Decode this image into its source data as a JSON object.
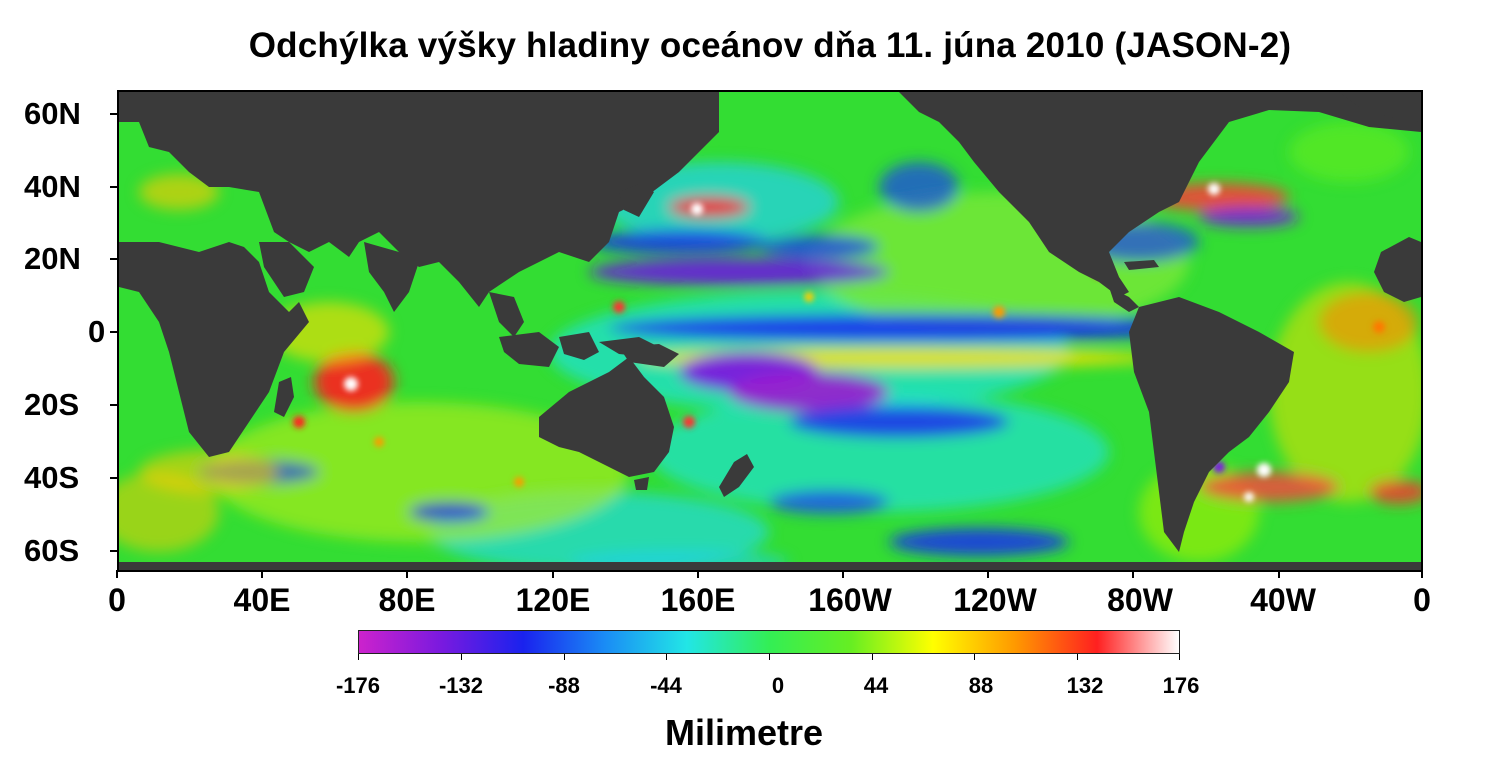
{
  "title": "Odchýlka výšky hladiny oceánov dňa 11. júna 2010 (JASON-2)",
  "map": {
    "latitude_labels": [
      "60N",
      "40N",
      "20N",
      "0",
      "20S",
      "40S",
      "60S"
    ],
    "longitude_labels": [
      "0",
      "40E",
      "80E",
      "120E",
      "160E",
      "160W",
      "120W",
      "80W",
      "40W",
      "0"
    ],
    "land_color": "#3a3a3a",
    "ocean_base_color": "#33dd33"
  },
  "colorbar": {
    "tick_labels": [
      "-176",
      "-132",
      "-88",
      "-44",
      "0",
      "44",
      "88",
      "132",
      "176"
    ],
    "range": [
      -176,
      176
    ],
    "colors": [
      "#cc22cc",
      "#7a1adf",
      "#1a22ee",
      "#1a8cf5",
      "#22e6e6",
      "#33ee55",
      "#66ee22",
      "#ffff00",
      "#ff9900",
      "#ff2020",
      "#ffffff"
    ],
    "units_label": "Milimetre"
  }
}
